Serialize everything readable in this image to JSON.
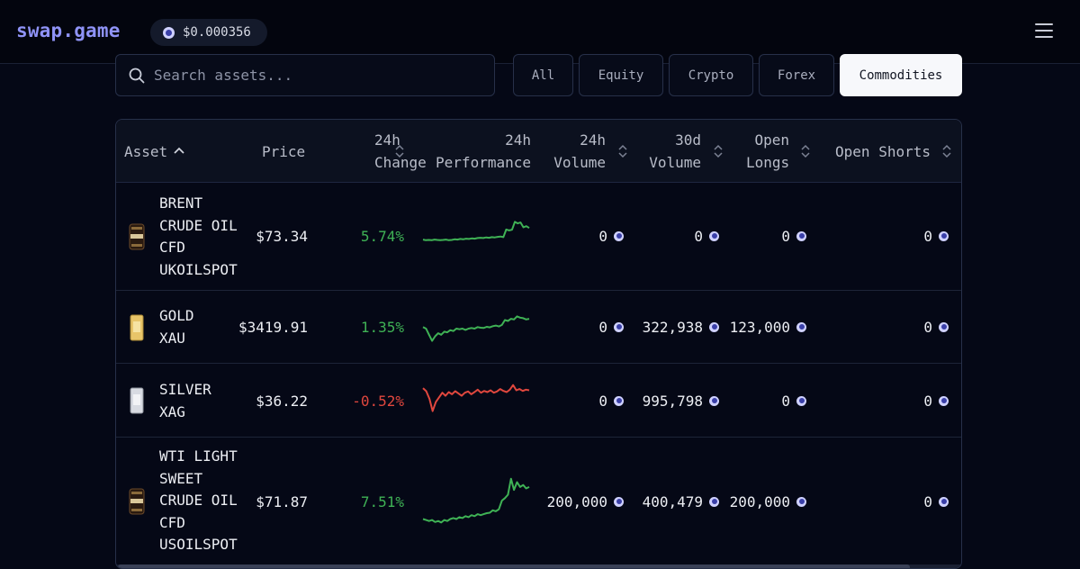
{
  "header": {
    "logo": "swap.game",
    "token_price": "$0.000356",
    "menu_icon": "hamburger-menu-icon"
  },
  "search": {
    "placeholder": "Search assets...",
    "value": ""
  },
  "filters": [
    {
      "label": "All",
      "active": false
    },
    {
      "label": "Equity",
      "active": false
    },
    {
      "label": "Crypto",
      "active": false
    },
    {
      "label": "Forex",
      "active": false
    },
    {
      "label": "Commodities",
      "active": true
    }
  ],
  "table": {
    "columns": {
      "asset": "Asset",
      "price": "Price",
      "change_24h": "24h Change",
      "performance_24h": "24h Performance",
      "volume_24h": "24h Volume",
      "volume_30d": "30d Volume",
      "open_longs": "Open Longs",
      "open_shorts": "Open Shorts"
    },
    "rows": [
      {
        "name_lines": [
          "BRENT",
          "CRUDE OIL",
          "CFD",
          "UKOILSPOT"
        ],
        "icon": "brent-oil-barrel-icon",
        "price": "$73.34",
        "change": "5.74%",
        "trend": "up",
        "volume_24h": "0",
        "volume_30d": "0",
        "open_longs": "0",
        "open_shorts": "0",
        "sparkline": [
          0.32,
          0.3,
          0.31,
          0.3,
          0.32,
          0.31,
          0.3,
          0.31,
          0.32,
          0.3,
          0.31,
          0.33,
          0.32,
          0.34,
          0.33,
          0.35,
          0.34,
          0.36,
          0.35,
          0.37,
          0.38,
          0.37,
          0.39,
          0.38,
          0.4,
          0.39,
          0.41,
          0.42,
          0.4,
          0.65,
          0.62,
          0.64,
          0.9,
          0.85,
          0.88,
          0.72,
          0.76,
          0.7
        ]
      },
      {
        "name_lines": [
          "GOLD",
          "XAU"
        ],
        "icon": "gold-bar-icon",
        "price": "$3419.91",
        "change": "1.35%",
        "trend": "up",
        "volume_24h": "0",
        "volume_30d": "322,938",
        "open_longs": "123,000",
        "open_shorts": "0",
        "sparkline": [
          0.55,
          0.5,
          0.3,
          0.1,
          0.25,
          0.35,
          0.3,
          0.4,
          0.38,
          0.45,
          0.42,
          0.5,
          0.48,
          0.5,
          0.46,
          0.5,
          0.52,
          0.5,
          0.55,
          0.53,
          0.52,
          0.56,
          0.54,
          0.58,
          0.6,
          0.57,
          0.62,
          0.78,
          0.75,
          0.82,
          0.8,
          0.9,
          0.86,
          0.84,
          0.8,
          0.82
        ]
      },
      {
        "name_lines": [
          "SILVER",
          "XAG"
        ],
        "icon": "silver-bar-icon",
        "price": "$36.22",
        "change": "-0.52%",
        "trend": "down",
        "volume_24h": "0",
        "volume_30d": "995,798",
        "open_longs": "0",
        "open_shorts": "0",
        "sparkline": [
          0.85,
          0.75,
          0.5,
          0.1,
          0.4,
          0.55,
          0.7,
          0.6,
          0.72,
          0.65,
          0.75,
          0.68,
          0.6,
          0.7,
          0.74,
          0.65,
          0.72,
          0.8,
          0.7,
          0.76,
          0.72,
          0.78,
          0.7,
          0.74,
          0.82,
          0.76,
          0.72,
          0.8,
          0.95,
          0.78,
          0.82,
          0.76,
          0.8,
          0.78
        ]
      },
      {
        "name_lines": [
          "WTI LIGHT",
          "SWEET",
          "CRUDE OIL",
          "CFD",
          "USOILSPOT"
        ],
        "icon": "wti-oil-barrel-icon",
        "price": "$71.87",
        "change": "7.51%",
        "trend": "up",
        "volume_24h": "200,000",
        "volume_30d": "400,479",
        "open_longs": "200,000",
        "open_shorts": "0",
        "sparkline": [
          0.12,
          0.1,
          0.08,
          0.1,
          0.06,
          0.08,
          0.05,
          0.1,
          0.08,
          0.12,
          0.14,
          0.12,
          0.16,
          0.14,
          0.18,
          0.16,
          0.2,
          0.18,
          0.22,
          0.2,
          0.22,
          0.24,
          0.25,
          0.3,
          0.28,
          0.32,
          0.5,
          0.55,
          0.62,
          0.95,
          0.72,
          0.88,
          0.78,
          0.82,
          0.75,
          0.78
        ]
      }
    ]
  },
  "colors": {
    "positive": "#3fb255",
    "negative": "#e0473e",
    "brand": "#8f93f7"
  }
}
